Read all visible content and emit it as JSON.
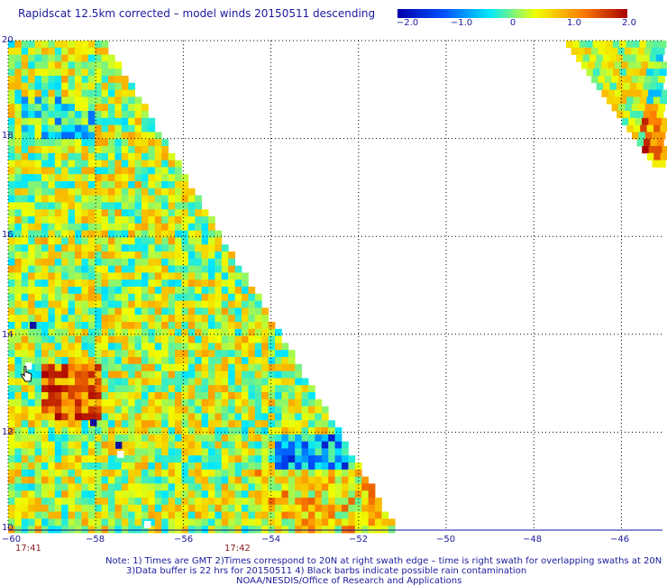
{
  "title": "Rapidscat 12.5km corrected – model winds 20150511 descending",
  "colorbar": {
    "labels": [
      "−2.0",
      "−1.0",
      "0",
      "1.0",
      "2.0"
    ],
    "range": [
      -2.0,
      2.0
    ],
    "colors": [
      "#0000a8",
      "#0050ff",
      "#00e8ff",
      "#f0ff00",
      "#ff8000",
      "#a80000"
    ]
  },
  "map": {
    "lon_range": [
      -60,
      -45
    ],
    "lat_range": [
      10,
      20
    ],
    "x_ticks": [
      -60,
      -58,
      -56,
      -54,
      -52,
      -50,
      -48,
      -46
    ],
    "x_tick_labels": [
      "−60",
      "−58",
      "−56",
      "−54",
      "−52",
      "−50",
      "−48",
      "−46"
    ],
    "y_ticks": [
      10,
      12,
      14,
      16,
      18,
      20
    ],
    "y_tick_labels": [
      "10",
      "12",
      "14",
      "16",
      "18",
      "20"
    ],
    "grid": true
  },
  "times": [
    "17:41",
    "17:42"
  ],
  "notes": [
    "Note: 1) Times are GMT 2)Times correspond to 20N at right swath edge – time is right swath for overlapping swaths at 20N",
    "3)Data buffer is 22 hrs for 20150511 4) Black barbs indicate possible rain contamination",
    "NOAA/NESDIS/Office of Research and Applications"
  ],
  "icons": {
    "cursor": "hand-cursor-icon"
  }
}
